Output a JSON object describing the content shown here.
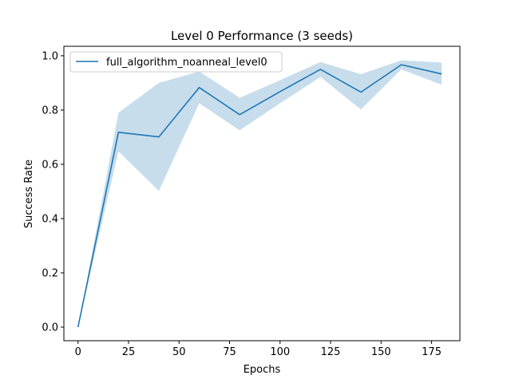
{
  "chart_data": {
    "type": "line",
    "title": "Level 0 Performance (3 seeds)",
    "xlabel": "Epochs",
    "ylabel": "Success Rate",
    "xlim": [
      -7,
      189
    ],
    "ylim": [
      -0.05,
      1.035
    ],
    "xticks": [
      0,
      25,
      50,
      75,
      100,
      125,
      150,
      175
    ],
    "yticks": [
      0.0,
      0.2,
      0.4,
      0.6,
      0.8,
      1.0
    ],
    "grid": false,
    "legend_position": "upper left",
    "series": [
      {
        "name": "full_algorithm_noanneal_level0",
        "color": "#1f77b4",
        "band_color": "#1f77b4",
        "band_alpha": 0.25,
        "x": [
          0,
          20,
          40,
          60,
          80,
          100,
          120,
          140,
          160,
          180
        ],
        "y": [
          0.0,
          0.718,
          0.701,
          0.883,
          0.783,
          0.868,
          0.95,
          0.866,
          0.967,
          0.933
        ],
        "y_upper": [
          0.0,
          0.79,
          0.9,
          0.942,
          0.845,
          0.91,
          0.977,
          0.932,
          0.983,
          0.975
        ],
        "y_lower": [
          0.0,
          0.648,
          0.502,
          0.825,
          0.725,
          0.825,
          0.922,
          0.802,
          0.95,
          0.893
        ]
      }
    ]
  }
}
